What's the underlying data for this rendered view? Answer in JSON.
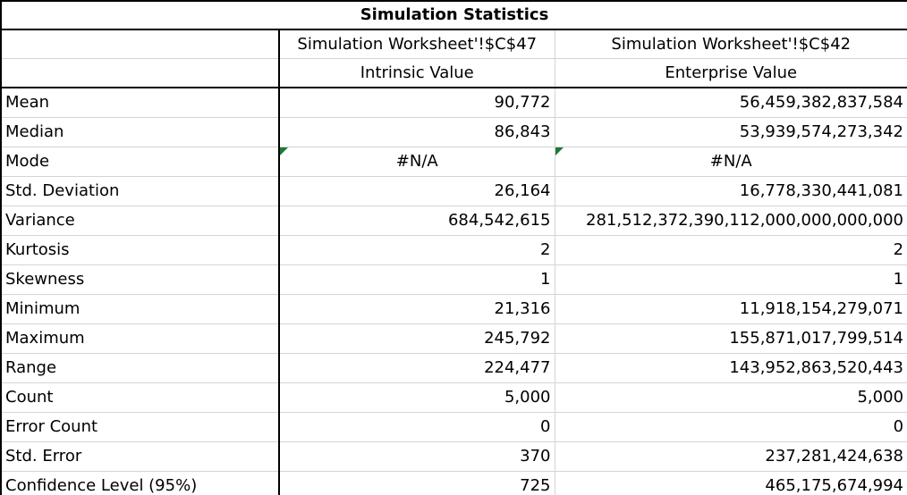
{
  "title": "Simulation Statistics",
  "columns": [
    {
      "ref": "Simulation Worksheet'!$C$47",
      "name": "Intrinsic Value"
    },
    {
      "ref": "Simulation Worksheet'!$C$42",
      "name": "Enterprise Value"
    }
  ],
  "rows": [
    {
      "label": "Mean",
      "values": [
        "90,772",
        "56,459,382,837,584"
      ]
    },
    {
      "label": "Median",
      "values": [
        "86,843",
        "53,939,574,273,342"
      ]
    },
    {
      "label": "Mode",
      "values": [
        "#N/A",
        "#N/A"
      ]
    },
    {
      "label": "Std. Deviation",
      "values": [
        "26,164",
        "16,778,330,441,081"
      ]
    },
    {
      "label": "Variance",
      "values": [
        "684,542,615",
        "281,512,372,390,112,000,000,000,000"
      ]
    },
    {
      "label": "Kurtosis",
      "values": [
        "2",
        "2"
      ]
    },
    {
      "label": "Skewness",
      "values": [
        "1",
        "1"
      ]
    },
    {
      "label": "Minimum",
      "values": [
        "21,316",
        "11,918,154,279,071"
      ]
    },
    {
      "label": "Maximum",
      "values": [
        "245,792",
        "155,871,017,799,514"
      ]
    },
    {
      "label": "Range",
      "values": [
        "224,477",
        "143,952,863,520,443"
      ]
    },
    {
      "label": "Count",
      "values": [
        "5,000",
        "5,000"
      ]
    },
    {
      "label": "Error Count",
      "values": [
        "0",
        "0"
      ]
    },
    {
      "label": "Std. Error",
      "values": [
        "370",
        "237,281,424,638"
      ]
    },
    {
      "label": "Confidence Level (95%)",
      "values": [
        "725",
        "465,175,674,994"
      ]
    }
  ],
  "colors": {
    "error_indicator": "#1e7b34",
    "gridline": "#d4d4d4",
    "border": "#000000"
  }
}
